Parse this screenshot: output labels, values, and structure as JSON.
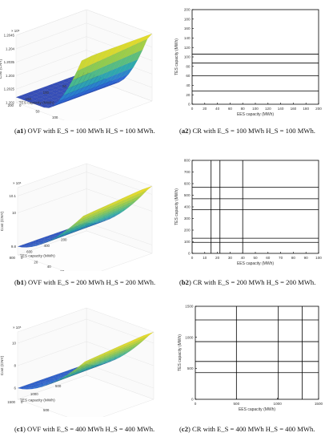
{
  "colors": {
    "high": "#f9e021",
    "mid": "#2fb2a6",
    "low": "#3b3fa8",
    "line": "#000000",
    "grid": "#e6e6e6"
  },
  "captions": {
    "a1": {
      "tag": "a1",
      "text": "OVF with  E_S = 100  MWh  H_S = 100  MWh."
    },
    "a2": {
      "tag": "a2",
      "text": "CR with  E_S = 100  MWh  H_S = 100  MWh."
    },
    "b1": {
      "tag": "b1",
      "text": "OVF with  E_S = 200  MWh  H_S = 200  MWh."
    },
    "b2": {
      "tag": "b2",
      "text": "CR with  E_S = 200  MWh  H_S = 200  MWh."
    },
    "c1": {
      "tag": "c1",
      "text": "OVF with  E_S = 400  MWh  H_S = 400  MWh."
    },
    "c2": {
      "tag": "c2",
      "text": "CR with  E_S = 400  MWh  H_S = 400  MWh."
    }
  },
  "chart_data": [
    {
      "id": "a1",
      "type": "surface",
      "zlabel": "Cost (CNY)",
      "xlabel": "EES capacity (MWh)",
      "ylabel": "TES capacity (MWh)",
      "zexp": "× 10⁶",
      "z_ticks": [
        "1.202",
        "1.2025",
        "1.203",
        "1.2035",
        "1.204",
        "1.2045"
      ],
      "tes_ticks": [
        "50",
        "100",
        "150",
        "200"
      ],
      "ees_ticks": [
        "0",
        "50",
        "100",
        "150",
        "200"
      ],
      "zlim": [
        1.202,
        1.2045
      ],
      "tes_range": [
        0,
        200
      ],
      "ees_range": [
        0,
        200
      ],
      "surface_low": 1.2022,
      "surface_high": 1.2047,
      "rise_start": 0.45
    },
    {
      "id": "a2",
      "type": "partition",
      "xlabel": "EES capacity (MWh)",
      "ylabel": "TES capacity (MWh)",
      "xlim": [
        0,
        200
      ],
      "ylim": [
        0,
        200
      ],
      "xticks": [
        "0",
        "20",
        "40",
        "60",
        "80",
        "100",
        "120",
        "140",
        "160",
        "180",
        "200"
      ],
      "yticks": [
        "0",
        "20",
        "40",
        "60",
        "80",
        "100",
        "120",
        "140",
        "160",
        "180",
        "200"
      ],
      "h_lines": [
        28,
        60,
        87,
        106
      ],
      "v_lines": []
    },
    {
      "id": "b1",
      "type": "surface",
      "zlabel": "Cost (CNY)",
      "xlabel": "EES capacity (MWh)",
      "ylabel": "TES capacity (MWh)",
      "zexp": "× 10⁶",
      "z_ticks": [
        "9.8",
        "10",
        "10.1"
      ],
      "tes_ticks": [
        "200",
        "400",
        "600",
        "800"
      ],
      "ees_ticks": [
        "0",
        "20",
        "40",
        "60",
        "80",
        "100"
      ],
      "zlim": [
        9.75,
        10.15
      ],
      "tes_range": [
        0,
        800
      ],
      "ees_range": [
        0,
        100
      ],
      "surface_low": 9.8,
      "surface_high": 10.15,
      "rise_start": 0.0
    },
    {
      "id": "b2",
      "type": "partition",
      "xlabel": "EES capacity (MWh)",
      "ylabel": "TES capacity (MWh)",
      "xlim": [
        0,
        100
      ],
      "ylim": [
        0,
        800
      ],
      "xticks": [
        "0",
        "10",
        "20",
        "30",
        "40",
        "50",
        "60",
        "70",
        "80",
        "90",
        "100"
      ],
      "yticks": [
        "0",
        "100",
        "200",
        "300",
        "400",
        "500",
        "600",
        "700",
        "800"
      ],
      "h_lines": [
        95,
        130,
        375,
        470,
        570
      ],
      "v_lines": [
        15,
        22,
        40
      ]
    },
    {
      "id": "c1",
      "type": "surface",
      "zlabel": "Cost (CNY)",
      "xlabel": "EES capacity (MWh)",
      "ylabel": "TES capacity (MWh)",
      "zexp": "× 10⁵",
      "z_ticks": [
        "6",
        "8",
        "10"
      ],
      "tes_ticks": [
        "500",
        "1000",
        "1500"
      ],
      "ees_ticks": [
        "0",
        "500",
        "1000",
        "1500"
      ],
      "zlim": [
        5,
        11
      ],
      "tes_range": [
        0,
        1500
      ],
      "ees_range": [
        0,
        1500
      ],
      "surface_low": 6,
      "surface_high": 11,
      "rise_start": 0.0
    },
    {
      "id": "c2",
      "type": "partition",
      "xlabel": "EES capacity (MWh)",
      "ylabel": "TES capacity (MWh)",
      "xlim": [
        0,
        1500
      ],
      "ylim": [
        0,
        1500
      ],
      "xticks": [
        "0",
        "500",
        "1000",
        "1500"
      ],
      "yticks": [
        "0",
        "500",
        "1000",
        "1500"
      ],
      "h_lines": [
        430,
        610,
        930,
        1280
      ],
      "v_lines": [
        500,
        1010,
        1300
      ]
    }
  ]
}
